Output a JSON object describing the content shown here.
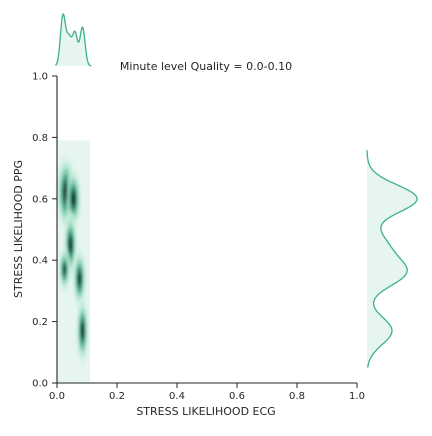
{
  "chart_data": {
    "type": "kde_joint",
    "title": "Minute level Quality = 0.0-0.10",
    "xlabel": "STRESS LIKELIHOOD ECG",
    "ylabel": "STRESS LIKELIHOOD PPG",
    "xlim": [
      0.0,
      1.0
    ],
    "ylim": [
      0.0,
      1.0
    ],
    "xticks": [
      "0.0",
      "0.2",
      "0.4",
      "0.6",
      "0.8",
      "1.0"
    ],
    "yticks": [
      "0.0",
      "0.2",
      "0.4",
      "0.6",
      "0.8",
      "1.0"
    ],
    "grid": false,
    "color": "#3cb18a",
    "fill_color": "#e6f5ef",
    "dark_color": "#0d2e24",
    "kde_support": {
      "x": [
        0.0,
        0.11
      ],
      "y": [
        0.0,
        0.79
      ]
    },
    "clusters": [
      {
        "x": 0.03,
        "y": 0.62,
        "sx": 0.012,
        "sy": 0.055,
        "w": 1.0
      },
      {
        "x": 0.055,
        "y": 0.6,
        "sx": 0.01,
        "sy": 0.045,
        "w": 0.85
      },
      {
        "x": 0.045,
        "y": 0.45,
        "sx": 0.009,
        "sy": 0.05,
        "w": 0.8
      },
      {
        "x": 0.025,
        "y": 0.37,
        "sx": 0.008,
        "sy": 0.035,
        "w": 0.65
      },
      {
        "x": 0.075,
        "y": 0.34,
        "sx": 0.009,
        "sy": 0.045,
        "w": 0.75
      },
      {
        "x": 0.085,
        "y": 0.17,
        "sx": 0.008,
        "sy": 0.05,
        "w": 0.85
      }
    ],
    "marginal_x": [
      {
        "x": 0.02,
        "density": 0.85
      },
      {
        "x": 0.04,
        "density": 0.45
      },
      {
        "x": 0.06,
        "density": 0.55
      },
      {
        "x": 0.085,
        "density": 0.65
      }
    ],
    "marginal_y": [
      {
        "y": 0.6,
        "density": 1.0
      },
      {
        "y": 0.45,
        "density": 0.35
      },
      {
        "y": 0.36,
        "density": 0.75
      },
      {
        "y": 0.17,
        "density": 0.5
      }
    ]
  }
}
